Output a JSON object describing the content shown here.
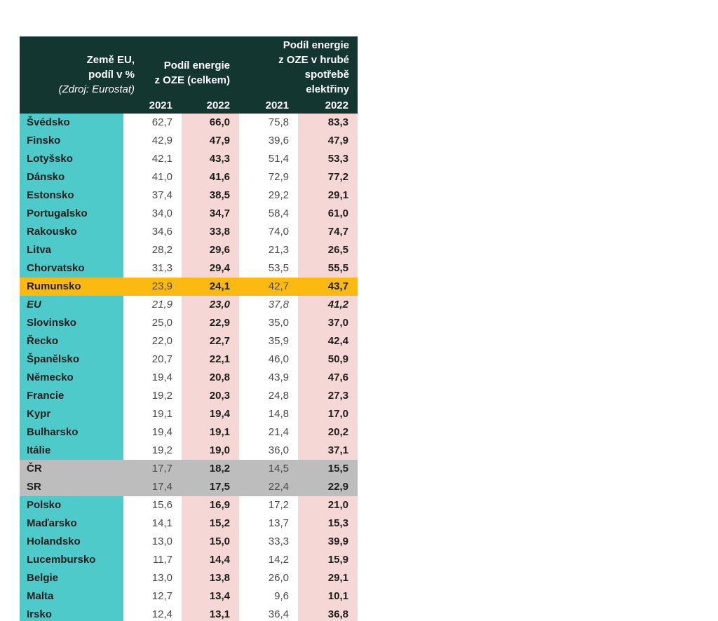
{
  "accent_colors": {
    "header_bg": "#133630",
    "header_text": "#FFFFFF",
    "country_bg": "#4FCACA",
    "pink": "#F5D8D5",
    "yellow": "#FBB911",
    "gray": "#BDBDBD",
    "text_dark": "#1D1D1B",
    "val2021": "#4A4A4A"
  },
  "header": {
    "title_line1": "Země EU,",
    "title_line2": "podíl v %",
    "source": "(Zdroj: Eurostat)",
    "group1_lines": [
      "Podíl energie",
      "z OZE (celkem)"
    ],
    "group2_lines": [
      "Podíl energie",
      "z OZE v hrubé",
      "spotřebě",
      "elektřiny"
    ],
    "years": [
      "2021",
      "2022",
      "2021",
      "2022"
    ]
  },
  "chart_data": {
    "type": "table",
    "title": "Země EU, podíl v %",
    "source": "(Zdroj: Eurostat)",
    "column_groups": [
      {
        "label": "Podíl energie z OZE (celkem)",
        "years": [
          "2021",
          "2022"
        ]
      },
      {
        "label": "Podíl energie z OZE v hrubé spotřebě elektřiny",
        "years": [
          "2021",
          "2022"
        ]
      }
    ],
    "unit": "%",
    "rows": [
      {
        "country": "Švédsko",
        "values": [
          "62,7",
          "66,0",
          "75,8",
          "83,3"
        ],
        "style": "normal"
      },
      {
        "country": "Finsko",
        "values": [
          "42,9",
          "47,9",
          "39,6",
          "47,9"
        ],
        "style": "normal"
      },
      {
        "country": "Lotyšsko",
        "values": [
          "42,1",
          "43,3",
          "51,4",
          "53,3"
        ],
        "style": "normal"
      },
      {
        "country": "Dánsko",
        "values": [
          "41,0",
          "41,6",
          "72,9",
          "77,2"
        ],
        "style": "normal"
      },
      {
        "country": "Estonsko",
        "values": [
          "37,4",
          "38,5",
          "29,2",
          "29,1"
        ],
        "style": "normal"
      },
      {
        "country": "Portugalsko",
        "values": [
          "34,0",
          "34,7",
          "58,4",
          "61,0"
        ],
        "style": "normal"
      },
      {
        "country": "Rakousko",
        "values": [
          "34,6",
          "33,8",
          "74,0",
          "74,7"
        ],
        "style": "normal"
      },
      {
        "country": "Litva",
        "values": [
          "28,2",
          "29,6",
          "21,3",
          "26,5"
        ],
        "style": "normal"
      },
      {
        "country": "Chorvatsko",
        "values": [
          "31,3",
          "29,4",
          "53,5",
          "55,5"
        ],
        "style": "normal"
      },
      {
        "country": "Rumunsko",
        "values": [
          "23,9",
          "24,1",
          "42,7",
          "43,7"
        ],
        "style": "highlight-yellow"
      },
      {
        "country": "EU",
        "values": [
          "21,9",
          "23,0",
          "37,8",
          "41,2"
        ],
        "style": "eu-italic"
      },
      {
        "country": "Slovinsko",
        "values": [
          "25,0",
          "22,9",
          "35,0",
          "37,0"
        ],
        "style": "normal"
      },
      {
        "country": "Řecko",
        "values": [
          "22,0",
          "22,7",
          "35,9",
          "42,4"
        ],
        "style": "normal"
      },
      {
        "country": "Španělsko",
        "values": [
          "20,7",
          "22,1",
          "46,0",
          "50,9"
        ],
        "style": "normal"
      },
      {
        "country": "Německo",
        "values": [
          "19,4",
          "20,8",
          "43,9",
          "47,6"
        ],
        "style": "normal"
      },
      {
        "country": "Francie",
        "values": [
          "19,2",
          "20,3",
          "24,8",
          "27,3"
        ],
        "style": "normal"
      },
      {
        "country": "Kypr",
        "values": [
          "19,1",
          "19,4",
          "14,8",
          "17,0"
        ],
        "style": "normal"
      },
      {
        "country": "Bulharsko",
        "values": [
          "19,4",
          "19,1",
          "21,4",
          "20,2"
        ],
        "style": "normal"
      },
      {
        "country": "Itálie",
        "values": [
          "19,2",
          "19,0",
          "36,0",
          "37,1"
        ],
        "style": "normal"
      },
      {
        "country": "ČR",
        "values": [
          "17,7",
          "18,2",
          "14,5",
          "15,5"
        ],
        "style": "highlight-gray"
      },
      {
        "country": "SR",
        "values": [
          "17,4",
          "17,5",
          "22,4",
          "22,9"
        ],
        "style": "highlight-gray"
      },
      {
        "country": "Polsko",
        "values": [
          "15,6",
          "16,9",
          "17,2",
          "21,0"
        ],
        "style": "normal"
      },
      {
        "country": "Maďarsko",
        "values": [
          "14,1",
          "15,2",
          "13,7",
          "15,3"
        ],
        "style": "normal"
      },
      {
        "country": "Holandsko",
        "values": [
          "13,0",
          "15,0",
          "33,3",
          "39,9"
        ],
        "style": "normal"
      },
      {
        "country": "Lucembursko",
        "values": [
          "11,7",
          "14,4",
          "14,2",
          "15,9"
        ],
        "style": "normal"
      },
      {
        "country": "Belgie",
        "values": [
          "13,0",
          "13,8",
          "26,0",
          "29,1"
        ],
        "style": "normal"
      },
      {
        "country": "Malta",
        "values": [
          "12,7",
          "13,4",
          "9,6",
          "10,1"
        ],
        "style": "normal"
      },
      {
        "country": "Irsko",
        "values": [
          "12,4",
          "13,1",
          "36,4",
          "36,8"
        ],
        "style": "normal"
      }
    ]
  }
}
